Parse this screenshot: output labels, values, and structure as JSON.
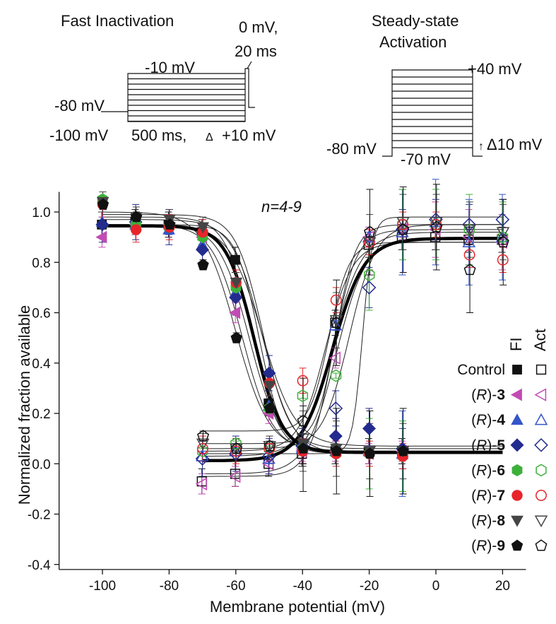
{
  "protocols": {
    "fast_inactivation": {
      "title": "Fast Inactivation",
      "test_label": "-10 mV",
      "pulse_label_1": "0 mV,",
      "pulse_label_2": "20 ms",
      "holding_label": "-80 mV",
      "start_label": "-100 mV",
      "duration_label": "500 ms,",
      "delta_symbol": "Δ",
      "step_label": "+10 mV"
    },
    "steady_state_activation": {
      "title_line1": "Steady-state",
      "title_line2": "Activation",
      "top_label": "+40 mV",
      "holding_label": "-80 mV",
      "bottom_label": "-70 mV",
      "arrow": "↑",
      "step_label": "Δ10 mV"
    }
  },
  "legend": {
    "col_fi": "FI",
    "col_act": "Act",
    "entries": [
      {
        "prefix": "Control",
        "italic": "",
        "suffix": "",
        "color": "#111111",
        "fi_shape": "square",
        "act_shape": "square"
      },
      {
        "prefix": "(",
        "italic": "R",
        "suffix": ")-",
        "number": "3",
        "color": "#c24bb3",
        "fi_shape": "tri-left",
        "act_shape": "tri-left"
      },
      {
        "prefix": "(",
        "italic": "R",
        "suffix": ")-",
        "number": "4",
        "color": "#3456c8",
        "fi_shape": "tri-up",
        "act_shape": "tri-up"
      },
      {
        "prefix": "(",
        "italic": "R",
        "suffix": ")-",
        "number": "5",
        "color": "#232b8e",
        "fi_shape": "diamond",
        "act_shape": "diamond"
      },
      {
        "prefix": "(",
        "italic": "R",
        "suffix": ")-",
        "number": "6",
        "color": "#3db03a",
        "fi_shape": "hexagon",
        "act_shape": "hexagon"
      },
      {
        "prefix": "(",
        "italic": "R",
        "suffix": ")-",
        "number": "7",
        "color": "#e8242a",
        "fi_shape": "circle",
        "act_shape": "circle"
      },
      {
        "prefix": "(",
        "italic": "R",
        "suffix": ")-",
        "number": "8",
        "color": "#444444",
        "fi_shape": "tri-down",
        "act_shape": "tri-down"
      },
      {
        "prefix": "(",
        "italic": "R",
        "suffix": ")-",
        "number": "9",
        "color": "#111111",
        "fi_shape": "pentagon",
        "act_shape": "pentagon"
      }
    ]
  },
  "chart_data": {
    "type": "scatter",
    "xlabel": "Membrane potential (mV)",
    "ylabel": "Normalized fraction available",
    "annotation": "n=4-9",
    "xlim": [
      -113,
      27
    ],
    "ylim": [
      -0.42,
      1.08
    ],
    "xticks": [
      "-100",
      "-80",
      "-60",
      "-40",
      "-20",
      "0",
      "20"
    ],
    "yticks": [
      "-0.4",
      "-0.2",
      "0.0",
      "0.2",
      "0.4",
      "0.6",
      "0.8",
      "1.0"
    ],
    "x_fi": [
      -100,
      -90,
      -80,
      -70,
      -60,
      -50,
      -40,
      -30,
      -20,
      -10
    ],
    "x_act": [
      -70,
      -60,
      -50,
      -40,
      -30,
      -20,
      -10,
      0,
      10,
      20
    ],
    "series": [
      {
        "name": "Control",
        "fi": [
          0.95,
          0.96,
          0.95,
          0.92,
          0.81,
          0.24,
          0.07,
          0.05,
          0.05,
          0.05
        ],
        "act": [
          -0.07,
          -0.04,
          0.0,
          0.04,
          0.56,
          0.87,
          0.9,
          0.9,
          0.89,
          0.89
        ]
      },
      {
        "name": "(R)-3",
        "fi": [
          0.9,
          0.95,
          0.95,
          0.9,
          0.6,
          0.2,
          0.06,
          0.05,
          0.04,
          0.05
        ],
        "act": [
          -0.08,
          -0.05,
          0.0,
          0.05,
          0.42,
          0.9,
          0.93,
          0.93,
          0.9,
          0.88
        ]
      },
      {
        "name": "(R)-4",
        "fi": [
          0.96,
          0.95,
          0.93,
          0.87,
          0.68,
          0.23,
          0.06,
          0.05,
          0.05,
          0.04
        ],
        "act": [
          0.03,
          0.05,
          0.02,
          0.06,
          0.55,
          0.9,
          0.92,
          0.96,
          0.88,
          0.9
        ]
      },
      {
        "name": "(R)-5",
        "fi": [
          0.95,
          0.96,
          0.94,
          0.85,
          0.66,
          0.36,
          0.07,
          0.11,
          0.14,
          0.06
        ],
        "act": [
          0.02,
          0.04,
          0.03,
          0.07,
          0.22,
          0.7,
          0.93,
          0.97,
          0.95,
          0.97
        ]
      },
      {
        "name": "(R)-6",
        "fi": [
          1.05,
          0.95,
          0.94,
          0.9,
          0.7,
          0.22,
          0.06,
          0.04,
          0.04,
          0.03
        ],
        "act": [
          0.05,
          0.08,
          0.06,
          0.27,
          0.35,
          0.75,
          0.95,
          0.95,
          0.93,
          0.9
        ]
      },
      {
        "name": "(R)-7",
        "fi": [
          1.03,
          0.93,
          0.94,
          0.92,
          0.72,
          0.32,
          0.05,
          0.04,
          0.04,
          0.03
        ],
        "act": [
          0.06,
          0.05,
          0.06,
          0.33,
          0.65,
          0.88,
          0.95,
          0.95,
          0.83,
          0.81
        ]
      },
      {
        "name": "(R)-8",
        "fi": [
          1.04,
          0.98,
          0.97,
          0.94,
          0.72,
          0.31,
          0.08,
          0.06,
          0.05,
          0.05
        ],
        "act": [
          0.08,
          0.06,
          0.07,
          0.1,
          0.57,
          0.88,
          0.96,
          0.96,
          0.93,
          0.92
        ]
      },
      {
        "name": "(R)-9",
        "fi": [
          1.03,
          0.98,
          0.95,
          0.79,
          0.5,
          0.22,
          0.06,
          0.05,
          0.04,
          0.05
        ],
        "act": [
          0.11,
          0.06,
          0.07,
          0.17,
          0.56,
          0.92,
          0.93,
          0.94,
          0.77,
          0.88
        ]
      }
    ],
    "fits": {
      "mean_fi": {
        "top": 0.945,
        "bottom": 0.045,
        "v_half": -54.5,
        "k": 4.2
      },
      "mean_act": {
        "top": 0.895,
        "bottom": 0.012,
        "v_half": -31,
        "k": 4.8
      },
      "series_fi": [
        {
          "top": 0.95,
          "bottom": 0.05,
          "v_half": -53,
          "k": 3.5
        },
        {
          "top": 0.95,
          "bottom": 0.05,
          "v_half": -58,
          "k": 4.5
        },
        {
          "top": 0.95,
          "bottom": 0.05,
          "v_half": -56,
          "k": 4.5
        },
        {
          "top": 0.95,
          "bottom": 0.07,
          "v_half": -52,
          "k": 5.0
        },
        {
          "top": 0.98,
          "bottom": 0.04,
          "v_half": -55,
          "k": 4.0
        },
        {
          "top": 0.97,
          "bottom": 0.04,
          "v_half": -52,
          "k": 4.5
        },
        {
          "top": 0.99,
          "bottom": 0.06,
          "v_half": -52,
          "k": 4.0
        },
        {
          "top": 1.0,
          "bottom": 0.05,
          "v_half": -60,
          "k": 5.0
        }
      ],
      "series_act": [
        {
          "top": 0.9,
          "bottom": -0.04,
          "v_half": -30,
          "k": 4.5
        },
        {
          "top": 0.93,
          "bottom": -0.05,
          "v_half": -31,
          "k": 3.5
        },
        {
          "top": 0.92,
          "bottom": 0.03,
          "v_half": -31,
          "k": 4.5
        },
        {
          "top": 0.98,
          "bottom": 0.04,
          "v_half": -22,
          "k": 1.5
        },
        {
          "top": 0.95,
          "bottom": 0.06,
          "v_half": -26,
          "k": 4.0
        },
        {
          "top": 0.88,
          "bottom": 0.05,
          "v_half": -33,
          "k": 4.0
        },
        {
          "top": 0.95,
          "bottom": 0.08,
          "v_half": -30,
          "k": 3.0
        },
        {
          "top": 0.88,
          "bottom": 0.13,
          "v_half": -32,
          "k": 3.0
        }
      ]
    }
  }
}
